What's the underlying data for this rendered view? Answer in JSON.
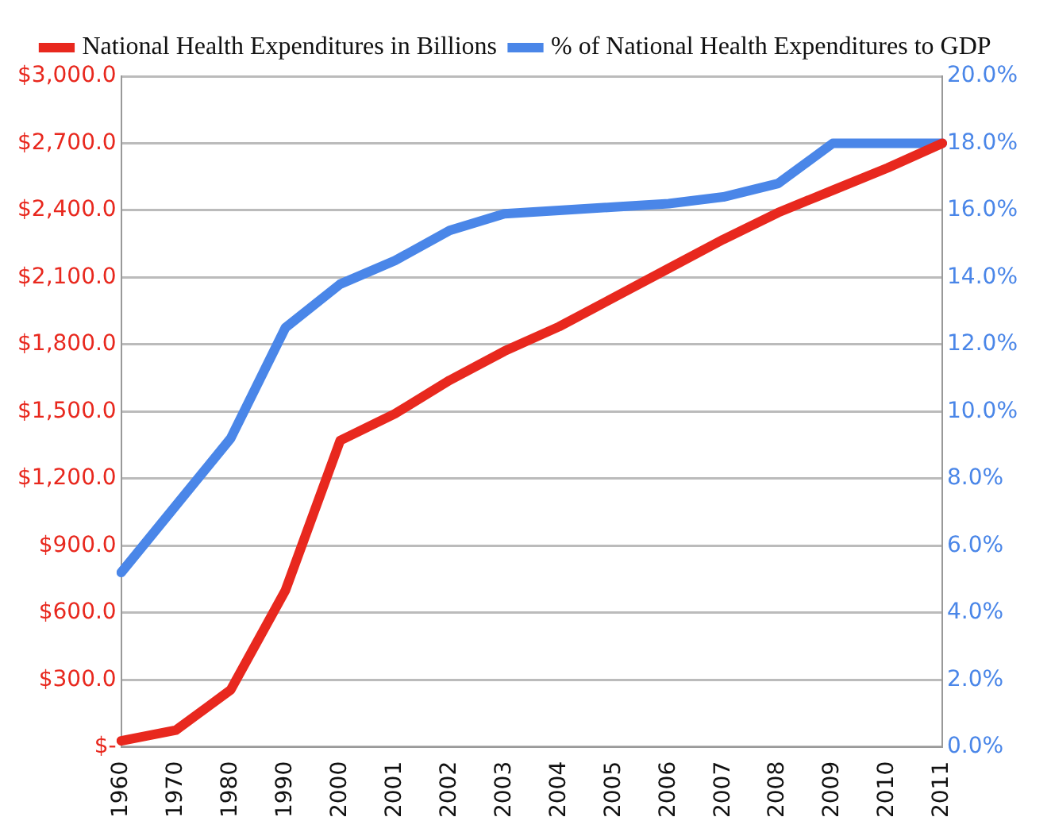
{
  "chart_data": {
    "type": "line",
    "categories": [
      "1960",
      "1970",
      "1980",
      "1990",
      "2000",
      "2001",
      "2002",
      "2003",
      "2004",
      "2005",
      "2006",
      "2007",
      "2008",
      "2009",
      "2010",
      "2011"
    ],
    "series": [
      {
        "name": "National Health Expenditures in Billions",
        "color": "#e8281e",
        "values": [
          27,
          75,
          255,
          700,
          1370,
          1490,
          1640,
          1770,
          1880,
          2010,
          2140,
          2270,
          2390,
          2490,
          2590,
          2700
        ]
      },
      {
        "name": "% of National Health Expenditures to GDP",
        "color": "#4a86e8",
        "axis": "y2",
        "values": [
          5.2,
          7.2,
          9.2,
          12.5,
          13.8,
          14.5,
          15.4,
          15.9,
          16.0,
          16.1,
          16.2,
          16.4,
          16.8,
          18.0,
          18.0,
          18.0
        ]
      }
    ],
    "ylim": [
      0,
      3000
    ],
    "yticks": [
      {
        "value": 0,
        "label": "$-"
      },
      {
        "value": 300,
        "label": "$300.0"
      },
      {
        "value": 600,
        "label": "$600.0"
      },
      {
        "value": 900,
        "label": "$900.0"
      },
      {
        "value": 1200,
        "label": "$1,200.0"
      },
      {
        "value": 1500,
        "label": "$1,500.0"
      },
      {
        "value": 1800,
        "label": "$1,800.0"
      },
      {
        "value": 2100,
        "label": "$2,100.0"
      },
      {
        "value": 2400,
        "label": "$2,400.0"
      },
      {
        "value": 2700,
        "label": "$2,700.0"
      },
      {
        "value": 3000,
        "label": "$3,000.0"
      }
    ],
    "y2lim": [
      0,
      20
    ],
    "y2ticks": [
      {
        "value": 0,
        "label": "0.0%"
      },
      {
        "value": 2,
        "label": "2.0%"
      },
      {
        "value": 4,
        "label": "4.0%"
      },
      {
        "value": 6,
        "label": "6.0%"
      },
      {
        "value": 8,
        "label": "8.0%"
      },
      {
        "value": 10,
        "label": "10.0%"
      },
      {
        "value": 12,
        "label": "12.0%"
      },
      {
        "value": 14,
        "label": "14.0%"
      },
      {
        "value": 16,
        "label": "16.0%"
      },
      {
        "value": 18,
        "label": "18.0%"
      },
      {
        "value": 20,
        "label": "20.0%"
      }
    ],
    "grid": "y",
    "legend": "top",
    "marker": "none",
    "line_style": "solid"
  }
}
